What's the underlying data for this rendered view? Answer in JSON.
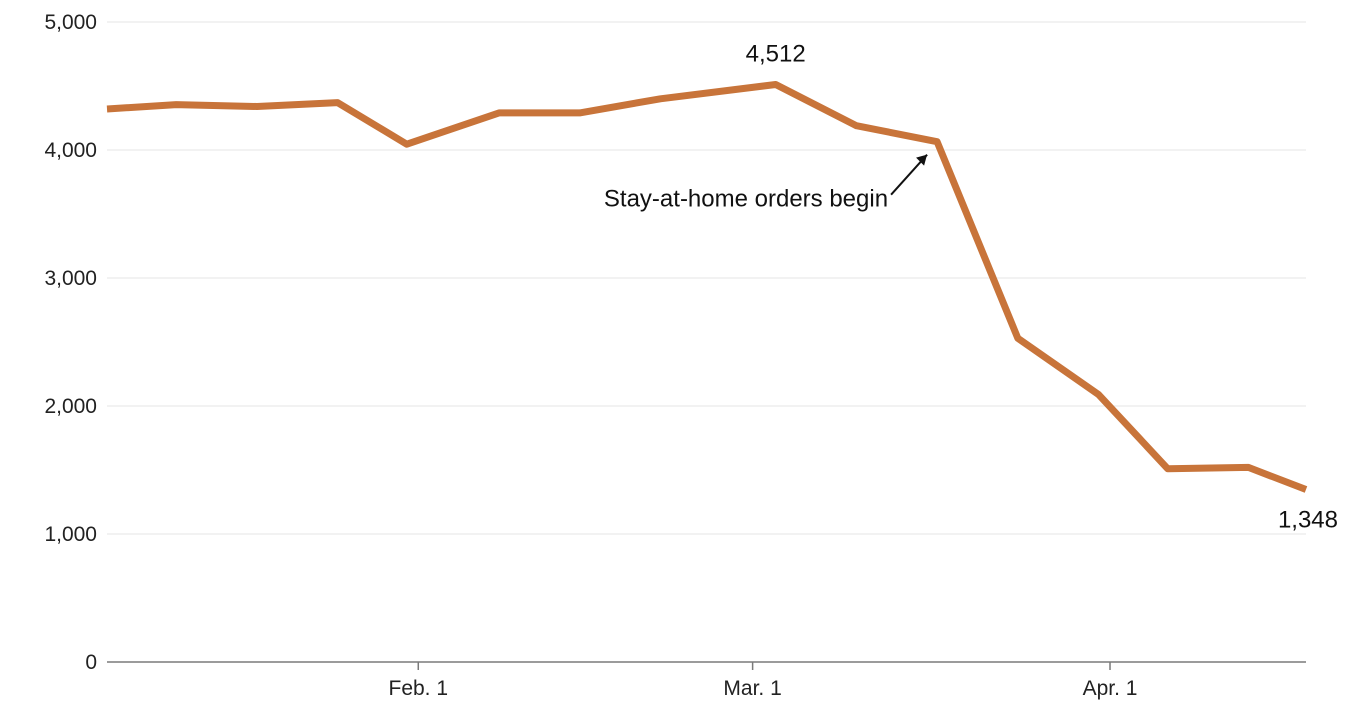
{
  "chart_data": {
    "type": "line",
    "title": "",
    "xlabel": "",
    "ylabel": "",
    "ylim": [
      0,
      5000
    ],
    "yticks": [
      0,
      1000,
      2000,
      3000,
      4000,
      5000
    ],
    "ytick_labels": [
      "0",
      "1,000",
      "2,000",
      "3,000",
      "4,000",
      "5,000"
    ],
    "xlim": [
      "2020-01-05",
      "2020-04-18"
    ],
    "xticks": [
      {
        "date": "2020-02-01",
        "label": "Feb. 1"
      },
      {
        "date": "2020-03-01",
        "label": "Mar. 1"
      },
      {
        "date": "2020-04-01",
        "label": "Apr. 1"
      }
    ],
    "grid": true,
    "series": [
      {
        "color": "#c8743a",
        "points": [
          {
            "x": "2020-01-05",
            "y": 4320
          },
          {
            "x": "2020-01-11",
            "y": 4355
          },
          {
            "x": "2020-01-18",
            "y": 4340
          },
          {
            "x": "2020-01-25",
            "y": 4370
          },
          {
            "x": "2020-01-31",
            "y": 4045
          },
          {
            "x": "2020-02-08",
            "y": 4290
          },
          {
            "x": "2020-02-15",
            "y": 4290
          },
          {
            "x": "2020-02-22",
            "y": 4400
          },
          {
            "x": "2020-03-03",
            "y": 4512
          },
          {
            "x": "2020-03-10",
            "y": 4190
          },
          {
            "x": "2020-03-17",
            "y": 4065
          },
          {
            "x": "2020-03-24",
            "y": 2530
          },
          {
            "x": "2020-03-31",
            "y": 2090
          },
          {
            "x": "2020-04-06",
            "y": 1510
          },
          {
            "x": "2020-04-13",
            "y": 1520
          },
          {
            "x": "2020-04-18",
            "y": 1348
          }
        ]
      }
    ],
    "data_labels": [
      {
        "x": "2020-03-03",
        "y": 4512,
        "text": "4,512",
        "position": "above"
      },
      {
        "x": "2020-04-18",
        "y": 1348,
        "text": "1,348",
        "position": "below"
      }
    ],
    "annotations": [
      {
        "x": "2020-03-17",
        "y": 4065,
        "text": "Stay-at-home orders begin"
      }
    ]
  }
}
